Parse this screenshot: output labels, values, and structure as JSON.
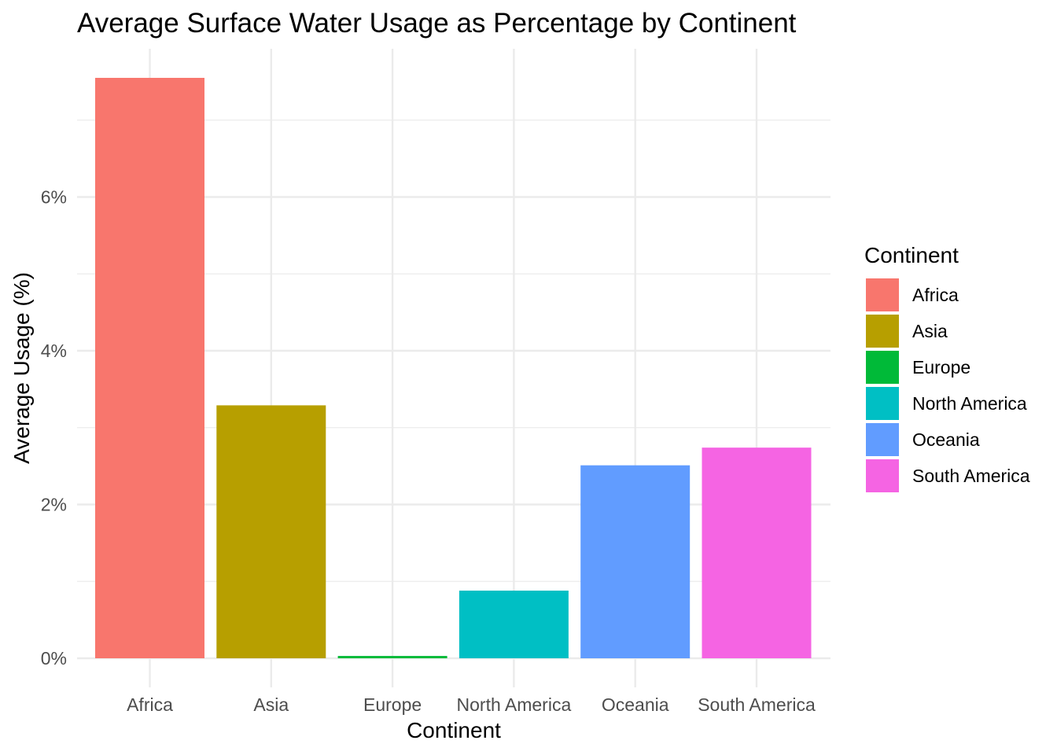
{
  "chart_data": {
    "type": "bar",
    "title": "Average Surface Water Usage as Percentage by Continent",
    "xlabel": "Continent",
    "ylabel": "Average Usage (%)",
    "categories": [
      "Africa",
      "Asia",
      "Europe",
      "North America",
      "Oceania",
      "South America"
    ],
    "values": [
      7.55,
      3.29,
      0.03,
      0.88,
      2.51,
      2.74
    ],
    "y_ticks": [
      0,
      2,
      4,
      6
    ],
    "y_tick_labels": [
      "0%",
      "2%",
      "4%",
      "6%"
    ],
    "ylim": [
      0,
      7.94
    ],
    "grid": true,
    "legend": {
      "title": "Continent",
      "position": "right",
      "entries": [
        "Africa",
        "Asia",
        "Europe",
        "North America",
        "Oceania",
        "South America"
      ]
    },
    "colors": [
      "#F8766D",
      "#B79F00",
      "#00BA38",
      "#00BFC4",
      "#619CFF",
      "#F564E3"
    ]
  }
}
